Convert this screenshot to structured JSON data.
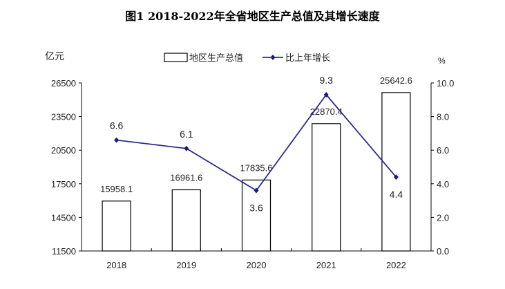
{
  "chart_data": {
    "type": "bar+line",
    "title": "图1 2018-2022年全省地区生产总值及其增长速度",
    "categories": [
      "2018",
      "2019",
      "2020",
      "2021",
      "2022"
    ],
    "ylabel_left": "亿元",
    "ylabel_right": "%",
    "ylim_left": [
      11500,
      26500
    ],
    "yticks_left": [
      11500,
      14500,
      17500,
      20500,
      23500,
      26500
    ],
    "ylim_right": [
      0,
      10
    ],
    "yticks_right": [
      "0.0",
      "2.0",
      "4.0",
      "6.0",
      "8.0",
      "10.0"
    ],
    "legend_position": "top",
    "grid": false,
    "series": [
      {
        "name": "地区生产总值",
        "type": "bar",
        "axis": "left",
        "values": [
          15958.1,
          16961.6,
          17835.6,
          22870.4,
          25642.6
        ],
        "labels": [
          "15958.1",
          "16961.6",
          "17835.6",
          "22870.4",
          "25642.6"
        ],
        "color": "#ffffff",
        "edge": "#000000"
      },
      {
        "name": "比上年增长",
        "type": "line",
        "axis": "right",
        "values": [
          6.6,
          6.1,
          3.6,
          9.3,
          4.4
        ],
        "labels": [
          "6.6",
          "6.1",
          "3.6",
          "9.3",
          "4.4"
        ],
        "color": "#2b2b8f"
      }
    ]
  }
}
